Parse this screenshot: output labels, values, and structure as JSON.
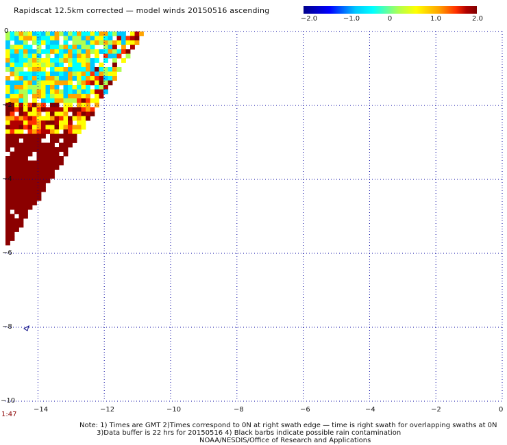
{
  "title": "Rapidscat 12.5km corrected — model winds 20150516 ascending",
  "colorbar": {
    "ticks": [
      "−2.0",
      "−1.0",
      "0",
      "1.0",
      "2.0"
    ],
    "tick_values": [
      -2.0,
      -1.0,
      0,
      1.0,
      2.0
    ],
    "colors": [
      "#00008b",
      "#0000ff",
      "#00c8ff",
      "#00ffff",
      "#b0ff50",
      "#ffff00",
      "#ffa500",
      "#ff3000",
      "#b00000",
      "#800000"
    ]
  },
  "axes": {
    "x_ticks": [
      "−14",
      "−12",
      "−10",
      "−8",
      "−6",
      "−4",
      "−2",
      "0"
    ],
    "x_values": [
      -14,
      -12,
      -10,
      -8,
      -6,
      -4,
      -2,
      0
    ],
    "y_ticks": [
      "0",
      "−2",
      "−4",
      "−6",
      "−8",
      "−10"
    ],
    "y_values": [
      0,
      -2,
      -4,
      -6,
      -8,
      -10
    ],
    "xlim": [
      -15,
      0
    ],
    "ylim": [
      -10,
      0
    ],
    "grid": true
  },
  "time_label": "1:47",
  "notes": [
    "Note: 1) Times are GMT 2)Times correspond to 0N at right swath edge — time is right swath for overlapping swaths at 0N",
    "3)Data buffer is 22 hrs for 20150516 4) Black barbs indicate possible rain contamination",
    "NOAA/NESDIS/Office of Research and Applications"
  ]
}
